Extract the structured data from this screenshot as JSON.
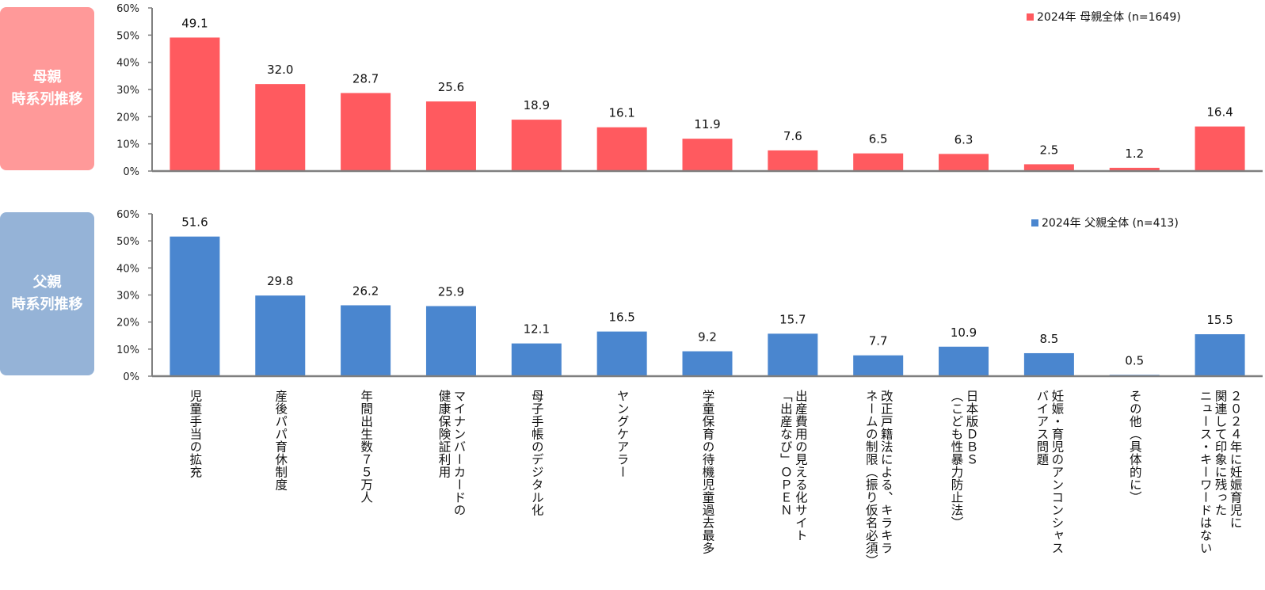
{
  "panels": {
    "mother": {
      "title_line1": "母親",
      "title_line2": "時系列推移"
    },
    "father": {
      "title_line1": "父親",
      "title_line2": "時系列推移"
    }
  },
  "colors": {
    "mother": "#ff5a5f",
    "father": "#4a86cf",
    "axis": "#7f7f7f"
  },
  "chart_data": [
    {
      "type": "bar",
      "title": "母親 時系列推移",
      "xlabel": "",
      "ylabel": "",
      "ylim": [
        0,
        60
      ],
      "yticks": [
        "0%",
        "10%",
        "20%",
        "30%",
        "40%",
        "50%",
        "60%"
      ],
      "legend_position": "top-right",
      "grid": false,
      "categories": [
        "児童手当の拡充",
        "産後パパ育休制度",
        "年間出生数７５万人",
        "マイナンバーカードの\n健康保険証利用",
        "母子手帳のデジタル化",
        "ヤングケアラー",
        "学童保育の待機児童過去最多",
        "出産費用の見える化サイト\n「出産なび」ＯＰＥＮ",
        "改正戸籍法による、キラキラ\nネームの制限（振り仮名必須）",
        "日本版ＤＢＳ\n（こども性暴力防止法）",
        "妊娠・育児のアンコンシャス\nバイアス問題",
        "その他（具体的に）",
        "２０２４年に妊娠育児に\n関連して印象に残った\nニュース・キーワードはない"
      ],
      "series": [
        {
          "name": "2024年  母親全体 (n=1649)",
          "values": [
            49.1,
            32.0,
            28.7,
            25.6,
            18.9,
            16.1,
            11.9,
            7.6,
            6.5,
            6.3,
            2.5,
            1.2,
            16.4
          ],
          "labels": [
            "49.1",
            "32.0",
            "28.7",
            "25.6",
            "18.9",
            "16.1",
            "11.9",
            "7.6",
            "6.5",
            "6.3",
            "2.5",
            "1.2",
            "16.4"
          ]
        }
      ]
    },
    {
      "type": "bar",
      "title": "父親 時系列推移",
      "xlabel": "",
      "ylabel": "",
      "ylim": [
        0,
        60
      ],
      "yticks": [
        "0%",
        "10%",
        "20%",
        "30%",
        "40%",
        "50%",
        "60%"
      ],
      "legend_position": "top-right",
      "grid": false,
      "categories_shared_with": "母親 時系列推移",
      "series": [
        {
          "name": "2024年  父親全体 (n=413)",
          "values": [
            51.6,
            29.8,
            26.2,
            25.9,
            12.1,
            16.5,
            9.2,
            15.7,
            7.7,
            10.9,
            8.5,
            0.5,
            15.5
          ],
          "labels": [
            "51.6",
            "29.8",
            "26.2",
            "25.9",
            "12.1",
            "16.5",
            "9.2",
            "15.7",
            "7.7",
            "10.9",
            "8.5",
            "0.5",
            "15.5"
          ]
        }
      ]
    }
  ]
}
